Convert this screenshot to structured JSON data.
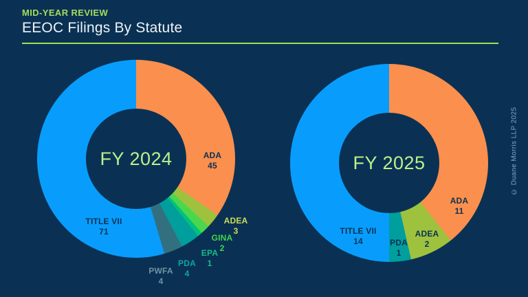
{
  "header": {
    "eyebrow": "MID-YEAR REVIEW",
    "title": "EEOC Filings By Statute",
    "accent_color": "#a6de53"
  },
  "footer": {
    "copyright": "© Duane Morris LLP 2025"
  },
  "colors": {
    "background": "#0a3154",
    "center_label": "#bdf08a",
    "inside_label": "#0a3154"
  },
  "chart_data": [
    {
      "type": "pie",
      "subtype": "donut",
      "center_label": "FY 2024",
      "start_angle_deg": 0,
      "direction": "clockwise",
      "total": 130,
      "segments": [
        {
          "label": "ADA",
          "value": 45,
          "color": "#fb8f4d",
          "label_color": "#0a3154",
          "label_placement": "inside"
        },
        {
          "label": "ADEA",
          "value": 3,
          "color": "#9ec23d",
          "label_color": "#cfdf55",
          "label_placement": "outside"
        },
        {
          "label": "GINA",
          "value": 2,
          "color": "#4ad74e",
          "label_color": "#41d74c",
          "label_placement": "outside"
        },
        {
          "label": "EPA",
          "value": 1,
          "color": "#00c27d",
          "label_color": "#16bd89",
          "label_placement": "outside"
        },
        {
          "label": "PDA",
          "value": 4,
          "color": "#009e9c",
          "label_color": "#0da5a2",
          "label_placement": "outside"
        },
        {
          "label": "PWFA",
          "value": 4,
          "color": "#33707f",
          "label_color": "#6f93a2",
          "label_placement": "outside"
        },
        {
          "label": "TITLE VII",
          "value": 71,
          "color": "#089dfc",
          "label_color": "#0a3154",
          "label_placement": "inside"
        }
      ]
    },
    {
      "type": "pie",
      "subtype": "donut",
      "center_label": "FY 2025",
      "start_angle_deg": 0,
      "direction": "clockwise",
      "total": 28,
      "segments": [
        {
          "label": "ADA",
          "value": 11,
          "color": "#fb8f4d",
          "label_color": "#0a3154",
          "label_placement": "inside"
        },
        {
          "label": "ADEA",
          "value": 2,
          "color": "#9ec23d",
          "label_color": "#0a3154",
          "label_placement": "inside"
        },
        {
          "label": "PDA",
          "value": 1,
          "color": "#009e9c",
          "label_color": "#0a3154",
          "label_placement": "inside"
        },
        {
          "label": "TITLE VII",
          "value": 14,
          "color": "#089dfc",
          "label_color": "#0a3154",
          "label_placement": "inside"
        }
      ]
    }
  ]
}
